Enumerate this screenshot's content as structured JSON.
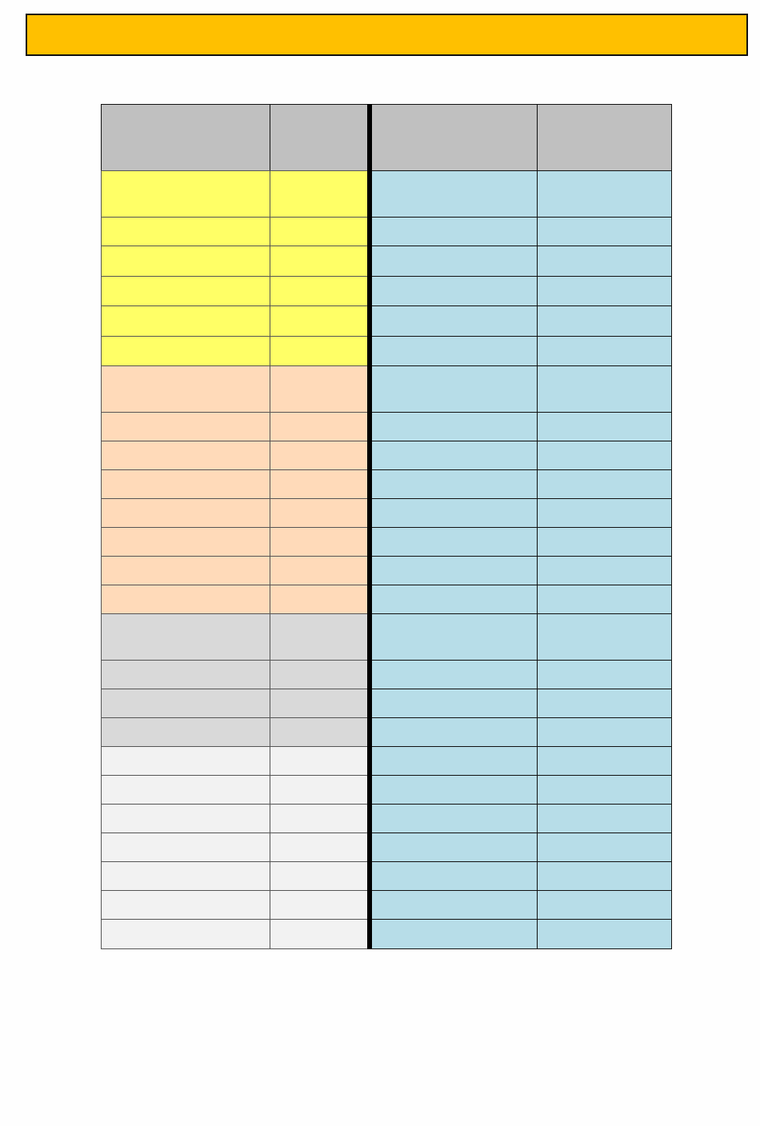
{
  "page": {
    "title": ""
  },
  "colors": {
    "banner": "#FFC000",
    "header": "#C0C0C0",
    "group_yellow": "#FFFF66",
    "group_peach": "#FFDAB9",
    "group_gray": "#D9D9D9",
    "group_light": "#F2F2F2",
    "right_side": "#B7DDE8"
  },
  "table": {
    "columns": 4,
    "row_groups": [
      {
        "group": "header",
        "rows": 1
      },
      {
        "group": "group_yellow",
        "rows": 6
      },
      {
        "group": "group_peach",
        "rows": 8
      },
      {
        "group": "group_gray",
        "rows": 4
      },
      {
        "group": "group_light",
        "rows": 7
      }
    ]
  }
}
